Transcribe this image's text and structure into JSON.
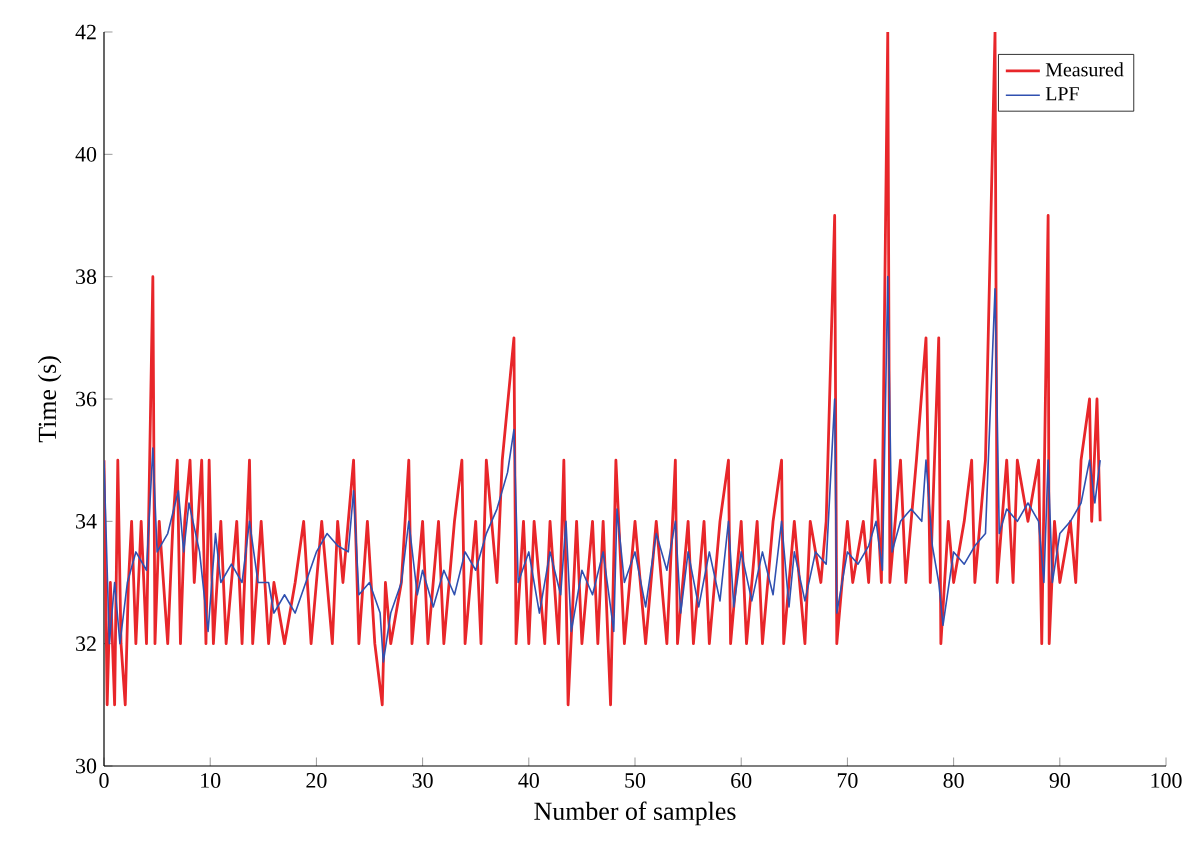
{
  "chart_data": {
    "type": "line",
    "xlabel": "Number of samples",
    "ylabel": "Time (s)",
    "xlim": [
      0,
      100
    ],
    "ylim": [
      30,
      42
    ],
    "xticks": [
      0,
      10,
      20,
      30,
      40,
      50,
      60,
      70,
      80,
      90,
      100
    ],
    "yticks": [
      30,
      32,
      34,
      36,
      38,
      40,
      42
    ],
    "grid": false,
    "legend": "top right",
    "marker": "none",
    "line_style": "solid",
    "series": [
      {
        "name": "Measured",
        "color": "#e8262a",
        "x": [
          0,
          0.3,
          0.6,
          1,
          1.3,
          1.6,
          2,
          2.3,
          2.6,
          3,
          3.5,
          4,
          4.6,
          4.8,
          5.2,
          6,
          6.5,
          6.9,
          7.2,
          7.6,
          8.1,
          8.5,
          9.2,
          9.6,
          9.9,
          10.3,
          11,
          11.5,
          12.5,
          13,
          13.7,
          14,
          14.8,
          15.5,
          16,
          17,
          18,
          18.8,
          19.5,
          20,
          20.5,
          21,
          21.5,
          22,
          22.5,
          23.5,
          24,
          24.8,
          25.5,
          26.2,
          26.5,
          27,
          28,
          28.7,
          29,
          30,
          30.5,
          31.5,
          32,
          33,
          33.7,
          34,
          35,
          35.5,
          36,
          37,
          37.5,
          38.6,
          38.8,
          39.5,
          40,
          40.5,
          41.5,
          42,
          42.8,
          43.3,
          43.7,
          44.5,
          45,
          46,
          46.5,
          47,
          47.7,
          48.2,
          49,
          50,
          51,
          52,
          53,
          53.8,
          54,
          55,
          55.5,
          56.5,
          57,
          58,
          58.8,
          59,
          60,
          60.5,
          61.5,
          62,
          63,
          63.8,
          64,
          65,
          66,
          66.5,
          67.5,
          68,
          68.8,
          69,
          70,
          70.5,
          71.5,
          72,
          72.6,
          73.2,
          73.8,
          74,
          75,
          75.5,
          76.5,
          77.4,
          77.8,
          78.6,
          78.8,
          79.5,
          80,
          81,
          81.7,
          82,
          83,
          83.9,
          84.1,
          85,
          85.6,
          86,
          87,
          88,
          88.3,
          88.9,
          89,
          89.5,
          90,
          91,
          91.5,
          92,
          92.8,
          93,
          93.5,
          93.8
        ],
        "values": [
          35,
          31,
          33,
          31,
          35,
          32,
          31,
          33,
          34,
          32,
          34,
          32,
          38,
          32,
          34,
          32,
          34,
          35,
          32,
          34,
          35,
          33,
          35,
          32,
          35,
          32,
          34,
          32,
          34,
          32,
          35,
          32,
          34,
          32,
          33,
          32,
          33,
          34,
          32,
          33,
          34,
          33,
          32,
          34,
          33,
          35,
          32,
          34,
          32,
          31,
          33,
          32,
          33,
          35,
          32,
          34,
          32,
          34,
          32,
          34,
          35,
          32,
          34,
          32,
          35,
          33,
          35,
          37,
          32,
          34,
          32,
          34,
          32,
          34,
          32,
          35,
          31,
          34,
          32,
          34,
          32,
          34,
          31,
          35,
          32,
          34,
          32,
          34,
          32,
          35,
          32,
          34,
          32,
          34,
          32,
          34,
          35,
          32,
          34,
          32,
          34,
          32,
          34,
          35,
          32,
          34,
          32,
          34,
          33,
          34,
          39,
          32,
          34,
          33,
          34,
          33,
          35,
          33,
          42,
          33,
          35,
          33,
          35,
          37,
          33,
          37,
          32,
          34,
          33,
          34,
          35,
          33,
          35,
          42,
          33,
          35,
          33,
          35,
          34,
          35,
          32,
          39,
          32,
          34,
          33,
          34,
          33,
          35,
          36,
          34,
          36,
          34
        ]
      },
      {
        "name": "LPF",
        "color": "#3050b0",
        "x": [
          0,
          0.5,
          1,
          1.5,
          2.2,
          3,
          4,
          4.6,
          5,
          6,
          7,
          7.5,
          8,
          9,
          9.8,
          10.5,
          11,
          12,
          13,
          13.7,
          14.5,
          15.5,
          16,
          17,
          18,
          19,
          20,
          21,
          22,
          23,
          23.5,
          24,
          25,
          26,
          26.3,
          27,
          28,
          28.7,
          29.5,
          30,
          31,
          32,
          33,
          34,
          35,
          36,
          37,
          38,
          38.6,
          39,
          40,
          41,
          42,
          43,
          43.5,
          44,
          45,
          46,
          47,
          48,
          48.3,
          49,
          50,
          51,
          52,
          53,
          53.8,
          54.3,
          55,
          56,
          57,
          58,
          58.8,
          59.3,
          60,
          61,
          62,
          63,
          63.8,
          64.5,
          65,
          66,
          67,
          68,
          68.8,
          69,
          70,
          71,
          72,
          72.7,
          73.3,
          73.8,
          74.2,
          75,
          76,
          77,
          77.4,
          78,
          78.6,
          79,
          80,
          81,
          82,
          83,
          83.9,
          84.3,
          85,
          86,
          87,
          88,
          88.5,
          88.9,
          89.3,
          90,
          91,
          92,
          92.8,
          93.3,
          93.8
        ],
        "values": [
          35,
          32,
          33,
          32,
          33,
          33.5,
          33.2,
          35.2,
          33.5,
          33.8,
          34.5,
          33.5,
          34.3,
          33.5,
          32.2,
          33.8,
          33,
          33.3,
          33,
          34,
          33,
          33,
          32.5,
          32.8,
          32.5,
          33,
          33.5,
          33.8,
          33.6,
          33.5,
          34.5,
          32.8,
          33,
          32.5,
          31.7,
          32.5,
          33,
          34,
          32.8,
          33.2,
          32.6,
          33.2,
          32.8,
          33.5,
          33.2,
          33.8,
          34.2,
          34.8,
          35.5,
          33,
          33.5,
          32.5,
          33.5,
          32.8,
          34,
          32.2,
          33.2,
          32.8,
          33.5,
          32.2,
          34.2,
          33,
          33.5,
          32.6,
          33.8,
          33.2,
          34,
          32.5,
          33.5,
          32.6,
          33.5,
          32.7,
          34,
          32.6,
          33.5,
          32.7,
          33.5,
          32.8,
          34,
          32.6,
          33.5,
          32.7,
          33.5,
          33.3,
          36,
          32.5,
          33.5,
          33.3,
          33.6,
          34,
          33.2,
          38,
          33.5,
          34,
          34.2,
          34,
          35,
          33.6,
          33,
          32.3,
          33.5,
          33.3,
          33.6,
          33.8,
          37.8,
          33.8,
          34.2,
          34,
          34.3,
          34,
          33,
          35,
          33,
          33.8,
          34,
          34.3,
          35,
          34.3,
          35
        ]
      }
    ]
  }
}
